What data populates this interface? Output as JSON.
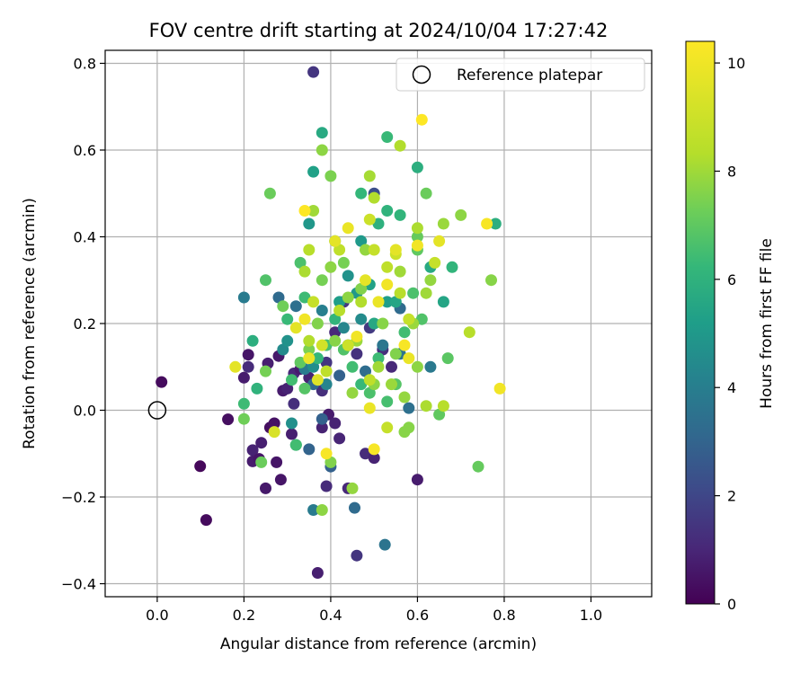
{
  "chart_data": {
    "type": "scatter",
    "title": "FOV centre drift starting at 2024/10/04 17:27:42",
    "xlabel": "Angular distance from reference (arcmin)",
    "ylabel": "Rotation from reference (arcmin)",
    "xlim": [
      -0.12,
      1.14
    ],
    "ylim": [
      -0.43,
      0.83
    ],
    "xticks": [
      0.0,
      0.2,
      0.4,
      0.6,
      0.8,
      1.0
    ],
    "xtick_labels": [
      "0.0",
      "0.2",
      "0.4",
      "0.6",
      "0.8",
      "1.0"
    ],
    "yticks": [
      -0.4,
      -0.2,
      0.0,
      0.2,
      0.4,
      0.6,
      0.8
    ],
    "ytick_labels": [
      "−0.4",
      "−0.2",
      "0.0",
      "0.2",
      "0.4",
      "0.6",
      "0.8"
    ],
    "grid": true,
    "legend": {
      "position": "top-right",
      "label": "Reference platepar"
    },
    "reference_point": {
      "x": 0.0,
      "y": 0.0
    },
    "colorbar": {
      "label": "Hours from first FF file",
      "range": [
        0,
        10.4
      ],
      "ticks": [
        0,
        2,
        4,
        6,
        8,
        10
      ],
      "tick_labels": [
        "0",
        "2",
        "4",
        "6",
        "8",
        "10"
      ],
      "colormap": "viridis"
    },
    "points": [
      [
        0.01,
        0.065,
        0.3
      ],
      [
        0.099,
        -0.129,
        0.2
      ],
      [
        0.113,
        -0.253,
        0.3
      ],
      [
        0.163,
        -0.021,
        0.4
      ],
      [
        0.2,
        0.075,
        0.8
      ],
      [
        0.21,
        0.128,
        0.6
      ],
      [
        0.22,
        -0.092,
        1.0
      ],
      [
        0.22,
        -0.118,
        0.8
      ],
      [
        0.235,
        -0.112,
        0.6
      ],
      [
        0.24,
        -0.075,
        0.9
      ],
      [
        0.25,
        -0.18,
        0.7
      ],
      [
        0.255,
        0.108,
        0.9
      ],
      [
        0.26,
        -0.04,
        0.4
      ],
      [
        0.27,
        -0.03,
        0.5
      ],
      [
        0.275,
        -0.12,
        0.6
      ],
      [
        0.28,
        0.125,
        0.7
      ],
      [
        0.285,
        -0.16,
        0.6
      ],
      [
        0.29,
        0.045,
        0.8
      ],
      [
        0.3,
        0.05,
        1.0
      ],
      [
        0.31,
        -0.055,
        0.9
      ],
      [
        0.315,
        0.085,
        1.2
      ],
      [
        0.33,
        0.095,
        0.8
      ],
      [
        0.35,
        0.075,
        1.0
      ],
      [
        0.36,
        0.78,
        1.6
      ],
      [
        0.37,
        -0.375,
        0.9
      ],
      [
        0.38,
        0.045,
        1.4
      ],
      [
        0.38,
        -0.04,
        1.0
      ],
      [
        0.39,
        0.11,
        1.6
      ],
      [
        0.39,
        -0.175,
        1.3
      ],
      [
        0.395,
        -0.01,
        0.8
      ],
      [
        0.41,
        0.18,
        1.2
      ],
      [
        0.41,
        -0.03,
        1.0
      ],
      [
        0.42,
        -0.065,
        1.1
      ],
      [
        0.43,
        0.25,
        1.6
      ],
      [
        0.44,
        -0.18,
        1.2
      ],
      [
        0.46,
        -0.335,
        1.6
      ],
      [
        0.48,
        -0.1,
        1.3
      ],
      [
        0.49,
        0.19,
        1.8
      ],
      [
        0.5,
        -0.11,
        1.0
      ],
      [
        0.52,
        0.14,
        1.4
      ],
      [
        0.54,
        0.1,
        1.2
      ],
      [
        0.6,
        -0.16,
        0.8
      ],
      [
        0.21,
        0.1,
        1.3
      ],
      [
        0.315,
        0.015,
        1.4
      ],
      [
        0.46,
        0.13,
        1.5
      ],
      [
        0.5,
        0.5,
        2.5
      ],
      [
        0.455,
        -0.225,
        3.6
      ],
      [
        0.525,
        -0.31,
        4.0
      ],
      [
        0.36,
        -0.23,
        4.3
      ],
      [
        0.35,
        -0.09,
        3.3
      ],
      [
        0.32,
        0.24,
        3.8
      ],
      [
        0.2,
        0.26,
        4.3
      ],
      [
        0.28,
        0.26,
        3.6
      ],
      [
        0.34,
        0.095,
        4.3
      ],
      [
        0.36,
        0.06,
        3.5
      ],
      [
        0.38,
        -0.02,
        3.2
      ],
      [
        0.42,
        0.08,
        3.2
      ],
      [
        0.44,
        0.15,
        4.2
      ],
      [
        0.48,
        0.09,
        3.7
      ],
      [
        0.52,
        0.15,
        4.1
      ],
      [
        0.56,
        0.235,
        3.6
      ],
      [
        0.58,
        0.005,
        3.8
      ],
      [
        0.63,
        0.1,
        4.2
      ],
      [
        0.4,
        -0.13,
        3.2
      ],
      [
        0.56,
        0.13,
        4.0
      ],
      [
        0.38,
        0.23,
        4.5
      ],
      [
        0.43,
        0.19,
        4.8
      ],
      [
        0.47,
        0.21,
        5.0
      ],
      [
        0.39,
        0.06,
        4.7
      ],
      [
        0.36,
        0.1,
        5.1
      ],
      [
        0.29,
        0.14,
        5.0
      ],
      [
        0.3,
        0.16,
        5.3
      ],
      [
        0.31,
        -0.03,
        5.2
      ],
      [
        0.32,
        -0.08,
        5.5
      ],
      [
        0.44,
        0.31,
        5.3
      ],
      [
        0.47,
        0.39,
        5.6
      ],
      [
        0.35,
        0.43,
        5.5
      ],
      [
        0.36,
        0.55,
        5.9
      ],
      [
        0.38,
        0.64,
        6.3
      ],
      [
        0.42,
        0.25,
        5.8
      ],
      [
        0.46,
        0.27,
        5.5
      ],
      [
        0.49,
        0.29,
        5.9
      ],
      [
        0.41,
        0.39,
        6.0
      ],
      [
        0.5,
        0.2,
        6.2
      ],
      [
        0.53,
        0.25,
        5.8
      ],
      [
        0.55,
        0.25,
        6.1
      ],
      [
        0.6,
        0.56,
        6.5
      ],
      [
        0.63,
        0.33,
        6.3
      ],
      [
        0.66,
        0.25,
        6.1
      ],
      [
        0.68,
        0.33,
        6.8
      ],
      [
        0.78,
        0.43,
        6.5
      ],
      [
        0.53,
        0.63,
        7.0
      ],
      [
        0.56,
        0.45,
        6.8
      ],
      [
        0.53,
        0.46,
        6.7
      ],
      [
        0.51,
        0.43,
        6.6
      ],
      [
        0.47,
        0.5,
        6.9
      ],
      [
        0.22,
        0.16,
        6.5
      ],
      [
        0.23,
        0.05,
        6.7
      ],
      [
        0.2,
        0.015,
        7.1
      ],
      [
        0.31,
        0.07,
        7.2
      ],
      [
        0.3,
        0.21,
        7.0
      ],
      [
        0.33,
        0.34,
        7.4
      ],
      [
        0.34,
        0.26,
        7.1
      ],
      [
        0.37,
        0.12,
        6.9
      ],
      [
        0.39,
        0.15,
        7.3
      ],
      [
        0.41,
        0.21,
        6.8
      ],
      [
        0.43,
        0.14,
        7.5
      ],
      [
        0.45,
        0.1,
        7.2
      ],
      [
        0.47,
        0.06,
        7.0
      ],
      [
        0.49,
        0.04,
        7.4
      ],
      [
        0.51,
        0.12,
        7.1
      ],
      [
        0.53,
        0.02,
        7.3
      ],
      [
        0.55,
        0.06,
        7.6
      ],
      [
        0.57,
        0.18,
        7.2
      ],
      [
        0.59,
        0.27,
        7.4
      ],
      [
        0.61,
        0.21,
        7.5
      ],
      [
        0.33,
        0.11,
        7.8
      ],
      [
        0.34,
        0.05,
        7.6
      ],
      [
        0.32,
        -0.08,
        7.2
      ],
      [
        0.25,
        0.3,
        7.5
      ],
      [
        0.6,
        0.37,
        7.8
      ],
      [
        0.67,
        0.12,
        7.7
      ],
      [
        0.65,
        -0.01,
        7.8
      ],
      [
        0.74,
        -0.13,
        7.9
      ],
      [
        0.6,
        0.4,
        7.9
      ],
      [
        0.62,
        0.5,
        8.0
      ],
      [
        0.26,
        0.5,
        8.0
      ],
      [
        0.24,
        -0.12,
        8.0
      ],
      [
        0.2,
        -0.02,
        8.1
      ],
      [
        0.25,
        0.09,
        8.2
      ],
      [
        0.29,
        0.24,
        8.1
      ],
      [
        0.35,
        0.14,
        8.3
      ],
      [
        0.37,
        0.2,
        8.4
      ],
      [
        0.38,
        0.3,
        8.2
      ],
      [
        0.4,
        0.33,
        8.6
      ],
      [
        0.41,
        0.16,
        8.5
      ],
      [
        0.43,
        0.34,
        8.2
      ],
      [
        0.44,
        0.26,
        8.6
      ],
      [
        0.45,
        0.04,
        8.7
      ],
      [
        0.46,
        0.16,
        8.8
      ],
      [
        0.47,
        0.28,
        8.4
      ],
      [
        0.48,
        0.37,
        8.7
      ],
      [
        0.5,
        0.06,
        8.6
      ],
      [
        0.51,
        0.1,
        8.9
      ],
      [
        0.52,
        0.2,
        8.5
      ],
      [
        0.54,
        0.06,
        8.8
      ],
      [
        0.55,
        0.13,
        8.4
      ],
      [
        0.56,
        0.32,
        8.9
      ],
      [
        0.57,
        0.03,
        8.7
      ],
      [
        0.58,
        -0.04,
        8.5
      ],
      [
        0.59,
        0.2,
        8.8
      ],
      [
        0.6,
        0.1,
        8.6
      ],
      [
        0.62,
        0.27,
        8.9
      ],
      [
        0.63,
        0.3,
        8.7
      ],
      [
        0.66,
        0.43,
        8.8
      ],
      [
        0.7,
        0.45,
        8.6
      ],
      [
        0.77,
        0.3,
        8.5
      ],
      [
        0.4,
        0.54,
        8.3
      ],
      [
        0.38,
        0.6,
        8.6
      ],
      [
        0.36,
        0.46,
        8.9
      ],
      [
        0.4,
        -0.12,
        8.4
      ],
      [
        0.38,
        -0.23,
        8.6
      ],
      [
        0.45,
        -0.18,
        8.7
      ],
      [
        0.57,
        -0.05,
        8.5
      ],
      [
        0.62,
        0.01,
        9.1
      ],
      [
        0.66,
        0.01,
        9.3
      ],
      [
        0.56,
        0.61,
        9.2
      ],
      [
        0.49,
        0.54,
        9.0
      ],
      [
        0.5,
        0.49,
        9.2
      ],
      [
        0.42,
        0.37,
        9.4
      ],
      [
        0.35,
        0.37,
        9.3
      ],
      [
        0.34,
        0.32,
        9.1
      ],
      [
        0.35,
        0.16,
        9.2
      ],
      [
        0.36,
        0.25,
        9.5
      ],
      [
        0.39,
        0.09,
        9.4
      ],
      [
        0.42,
        0.23,
        9.3
      ],
      [
        0.44,
        0.15,
        9.6
      ],
      [
        0.47,
        0.25,
        9.2
      ],
      [
        0.5,
        0.37,
        9.5
      ],
      [
        0.53,
        0.33,
        9.4
      ],
      [
        0.55,
        0.36,
        9.6
      ],
      [
        0.56,
        0.27,
        9.3
      ],
      [
        0.58,
        0.21,
        9.5
      ],
      [
        0.6,
        0.42,
        9.1
      ],
      [
        0.64,
        0.34,
        9.5
      ],
      [
        0.72,
        0.18,
        9.3
      ],
      [
        0.49,
        0.07,
        9.4
      ],
      [
        0.53,
        -0.04,
        9.5
      ],
      [
        0.49,
        0.44,
        9.6
      ],
      [
        0.38,
        0.15,
        9.7
      ],
      [
        0.27,
        -0.05,
        9.8
      ],
      [
        0.18,
        0.1,
        10.0
      ],
      [
        0.32,
        0.19,
        10.0
      ],
      [
        0.34,
        0.21,
        10.2
      ],
      [
        0.35,
        0.12,
        10.1
      ],
      [
        0.37,
        0.07,
        9.9
      ],
      [
        0.39,
        -0.1,
        10.3
      ],
      [
        0.41,
        0.39,
        10.0
      ],
      [
        0.44,
        0.42,
        10.1
      ],
      [
        0.46,
        0.17,
        10.2
      ],
      [
        0.48,
        0.3,
        10.0
      ],
      [
        0.5,
        -0.09,
        10.3
      ],
      [
        0.51,
        0.25,
        10.1
      ],
      [
        0.53,
        0.29,
        10.2
      ],
      [
        0.55,
        0.37,
        10.0
      ],
      [
        0.57,
        0.15,
        10.3
      ],
      [
        0.58,
        0.12,
        10.1
      ],
      [
        0.6,
        0.38,
        10.2
      ],
      [
        0.61,
        0.67,
        10.4
      ],
      [
        0.65,
        0.39,
        10.0
      ],
      [
        0.76,
        0.43,
        10.3
      ],
      [
        0.79,
        0.05,
        10.2
      ],
      [
        0.49,
        0.005,
        10.1
      ],
      [
        0.34,
        0.46,
        10.4
      ]
    ]
  }
}
